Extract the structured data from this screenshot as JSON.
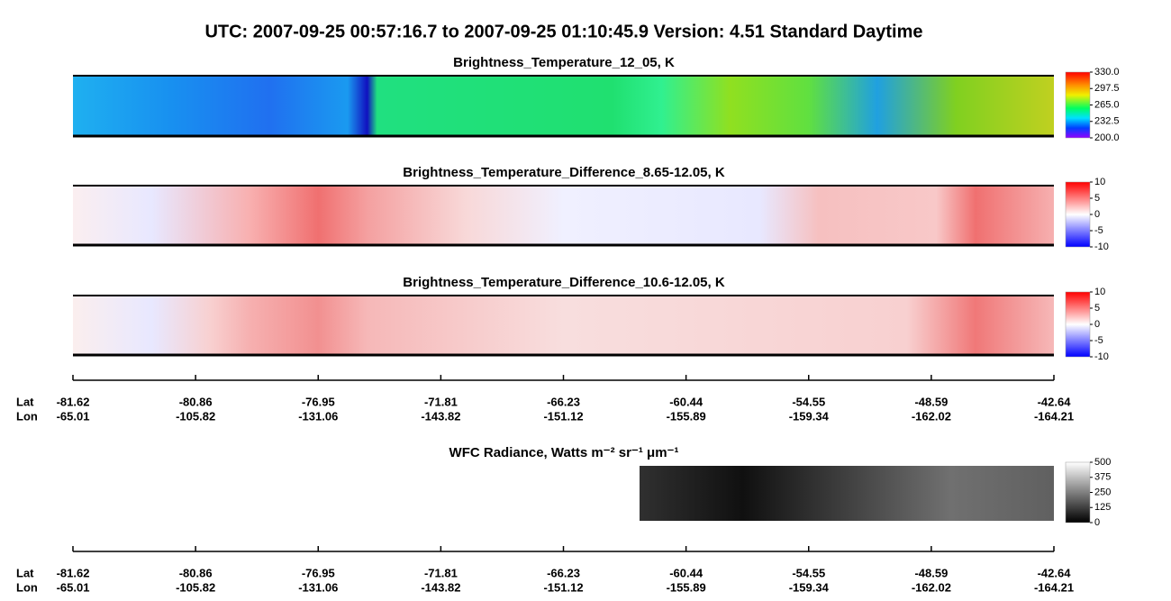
{
  "title": "UTC:  2007-09-25   00:57:16.7  to  2007-09-25   01:10:45.9    Version: 4.51  Standard Daytime",
  "panels": [
    {
      "title": "Brightness_Temperature_12_05, K",
      "colorbar": {
        "range": [
          200,
          330
        ],
        "ticks": [
          {
            "value": 330,
            "label": "330.0"
          },
          {
            "value": 297.5,
            "label": "297.5"
          },
          {
            "value": 265,
            "label": "265.0"
          },
          {
            "value": 232.5,
            "label": "232.5"
          },
          {
            "value": 200,
            "label": "200.0"
          }
        ]
      }
    },
    {
      "title": "Brightness_Temperature_Difference_8.65-12.05, K",
      "colorbar": {
        "range": [
          -10,
          10
        ],
        "ticks": [
          10,
          5,
          0,
          -5,
          -10
        ]
      }
    },
    {
      "title": "Brightness_Temperature_Difference_10.6-12.05, K",
      "colorbar": {
        "range": [
          -10,
          10
        ],
        "ticks": [
          10,
          5,
          0,
          -5,
          -10
        ]
      }
    },
    {
      "title": "WFC Radiance, Watts m⁻² sr⁻¹ μm⁻¹",
      "colorbar": {
        "range": [
          0,
          500
        ],
        "ticks": [
          500,
          375,
          250,
          125,
          0
        ]
      }
    }
  ],
  "axes": [
    {
      "lat_label": "Lat",
      "lon_label": "Lon",
      "lat": [
        -81.62,
        -80.86,
        -76.95,
        -71.81,
        -66.23,
        -60.44,
        -54.55,
        -48.59,
        -42.64
      ],
      "lon": [
        -65.01,
        -105.82,
        -131.06,
        -143.82,
        -151.12,
        -155.89,
        -159.34,
        -162.02,
        -164.21
      ]
    },
    {
      "lat_label": "Lat",
      "lon_label": "Lon",
      "lat": [
        -81.62,
        -80.86,
        -76.95,
        -71.81,
        -66.23,
        -60.44,
        -54.55,
        -48.59,
        -42.64
      ],
      "lon": [
        -65.01,
        -105.82,
        -131.06,
        -143.82,
        -151.12,
        -155.89,
        -159.34,
        -162.02,
        -164.21
      ]
    }
  ]
}
